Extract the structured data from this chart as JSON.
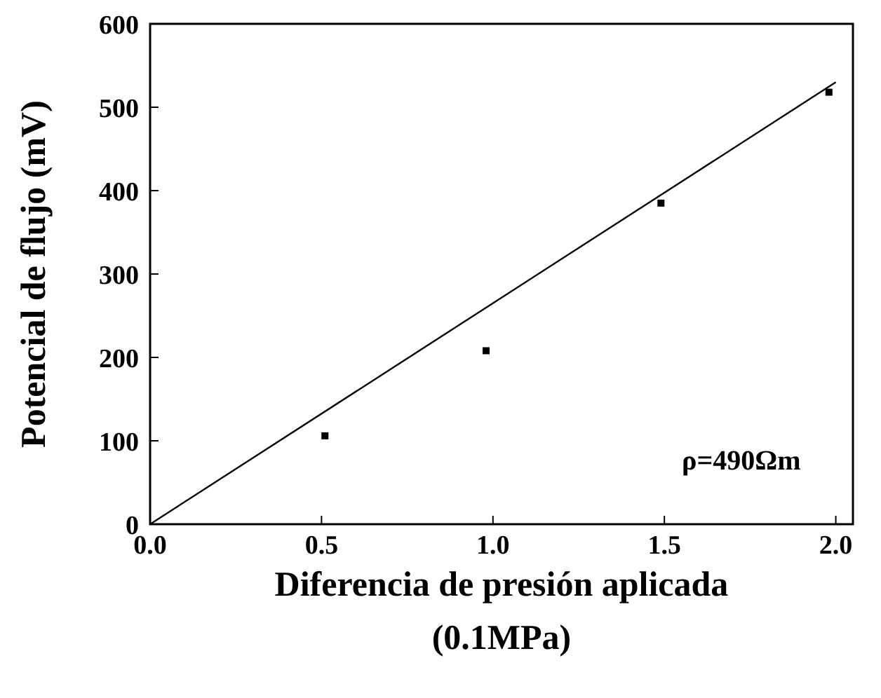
{
  "chart_data": {
    "type": "scatter",
    "xlabel": "Diferencia de presión aplicada\n(0.1MPa)",
    "ylabel": "Potencial de flujo (mV)",
    "x": [
      0.51,
      0.98,
      1.49,
      1.98
    ],
    "series": [
      {
        "color": "#000000",
        "values": [
          106,
          208,
          385,
          518
        ],
        "marker": "square"
      },
      {
        "type": "line",
        "color": "#000000",
        "x": [
          0,
          2.0
        ],
        "values": [
          0,
          530
        ],
        "marker": "none"
      }
    ],
    "xlim": [
      0,
      2.05
    ],
    "ylim": [
      0,
      600
    ],
    "xticks": [
      {
        "value": 0,
        "label": "0.0"
      },
      {
        "value": 0.5,
        "label": "0.5"
      },
      {
        "value": 1,
        "label": "1.0"
      },
      {
        "value": 1.5,
        "label": "1.5"
      },
      {
        "value": 2,
        "label": "2.0"
      }
    ],
    "yticks": [
      0,
      100,
      200,
      300,
      400,
      500,
      600
    ],
    "annotations": [
      {
        "text": "ρ=490Ωm"
      }
    ],
    "grid": false
  }
}
